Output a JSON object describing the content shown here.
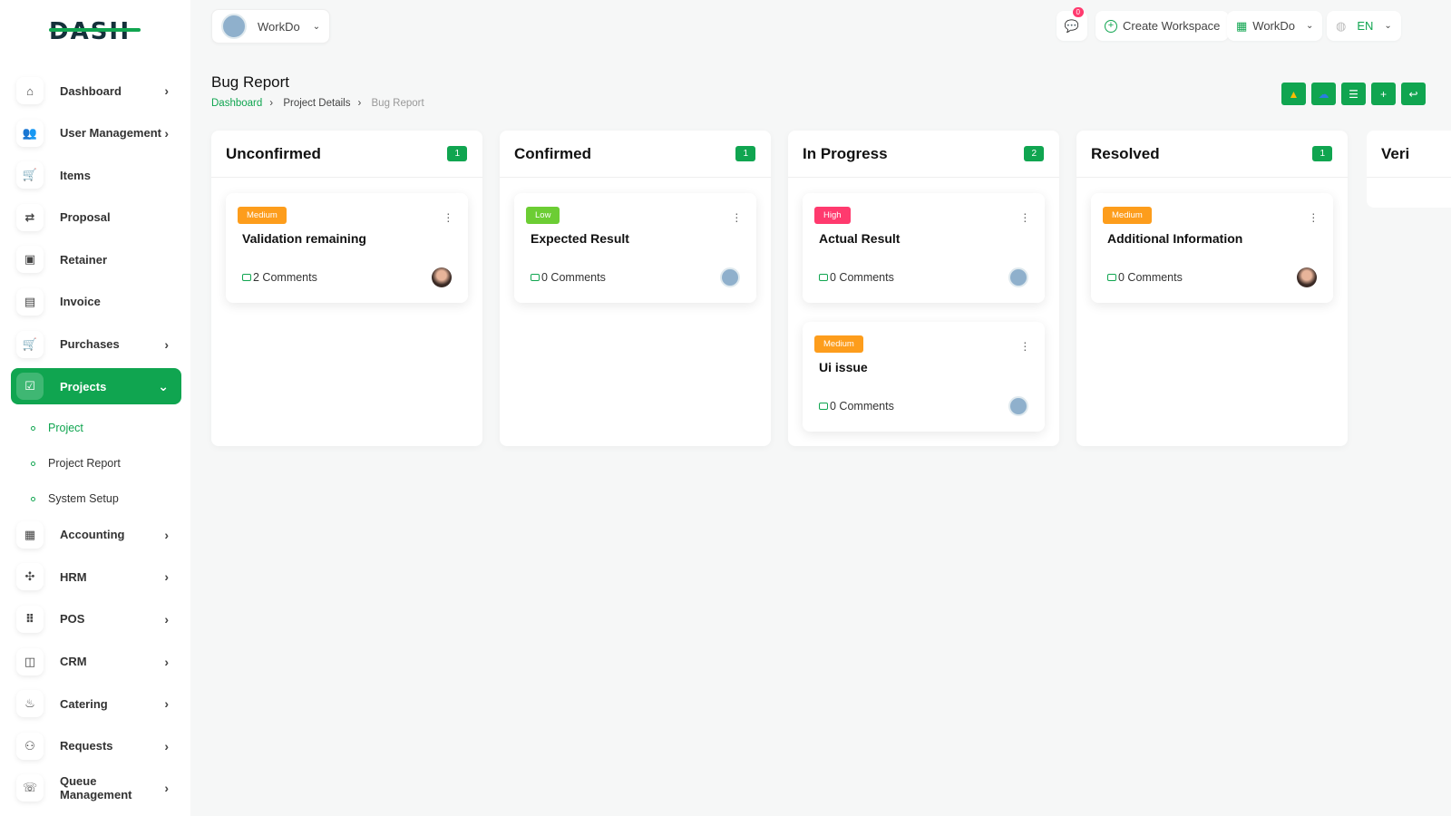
{
  "brand": {
    "logo_text": "DASH",
    "accent": "#10a550"
  },
  "topbar": {
    "workspace": "WorkDo",
    "notifications": "0",
    "create_workspace": "Create Workspace",
    "workspace_menu": "WorkDo",
    "language": "EN"
  },
  "sidebar": {
    "items": [
      {
        "label": "Dashboard",
        "icon": "home-icon",
        "chevron": true
      },
      {
        "label": "User Management",
        "icon": "users-icon",
        "chevron": true
      },
      {
        "label": "Items",
        "icon": "cart-icon",
        "chevron": false
      },
      {
        "label": "Proposal",
        "icon": "proposal-icon",
        "chevron": false
      },
      {
        "label": "Retainer",
        "icon": "retainer-icon",
        "chevron": false
      },
      {
        "label": "Invoice",
        "icon": "invoice-icon",
        "chevron": false
      },
      {
        "label": "Purchases",
        "icon": "cart-icon",
        "chevron": true
      },
      {
        "label": "Projects",
        "icon": "check-square-icon",
        "chevron": true,
        "active": true
      }
    ],
    "subitems": [
      {
        "label": "Project",
        "active": true
      },
      {
        "label": "Project Report"
      },
      {
        "label": "System Setup"
      }
    ],
    "items2": [
      {
        "label": "Accounting",
        "icon": "grid-icon"
      },
      {
        "label": "HRM",
        "icon": "hrm-icon"
      },
      {
        "label": "POS",
        "icon": "pos-icon"
      },
      {
        "label": "CRM",
        "icon": "crm-icon"
      },
      {
        "label": "Catering",
        "icon": "catering-icon"
      },
      {
        "label": "Requests",
        "icon": "user-plus-icon"
      },
      {
        "label": "Queue Management",
        "icon": "phone-icon"
      }
    ]
  },
  "page": {
    "title": "Bug Report",
    "breadcrumb": [
      "Dashboard",
      "Project Details",
      "Bug Report"
    ],
    "actions": [
      "google-drive-icon",
      "onedrive-icon",
      "list-icon",
      "plus-icon",
      "back-icon"
    ]
  },
  "board": {
    "columns": [
      {
        "title": "Unconfirmed",
        "count": "1",
        "cards": [
          {
            "priority": "Medium",
            "color": "#fd9d1c",
            "title": "Validation remaining",
            "comments": "2 Comments",
            "avatar": "photo"
          }
        ]
      },
      {
        "title": "Confirmed",
        "count": "1",
        "cards": [
          {
            "priority": "Low",
            "color": "#6ccd34",
            "title": "Expected Result",
            "comments": "0 Comments",
            "avatar": "building"
          }
        ]
      },
      {
        "title": "In Progress",
        "count": "2",
        "cards": [
          {
            "priority": "High",
            "color": "#ff3a6e",
            "title": "Actual Result",
            "comments": "0 Comments",
            "avatar": "building"
          },
          {
            "priority": "Medium",
            "color": "#fd9d1c",
            "title": "Ui issue",
            "comments": "0 Comments",
            "avatar": "building"
          }
        ]
      },
      {
        "title": "Resolved",
        "count": "1",
        "cards": [
          {
            "priority": "Medium",
            "color": "#fd9d1c",
            "title": "Additional Information",
            "comments": "0 Comments",
            "avatar": "photo"
          }
        ]
      }
    ],
    "partial_column": "Veri"
  }
}
